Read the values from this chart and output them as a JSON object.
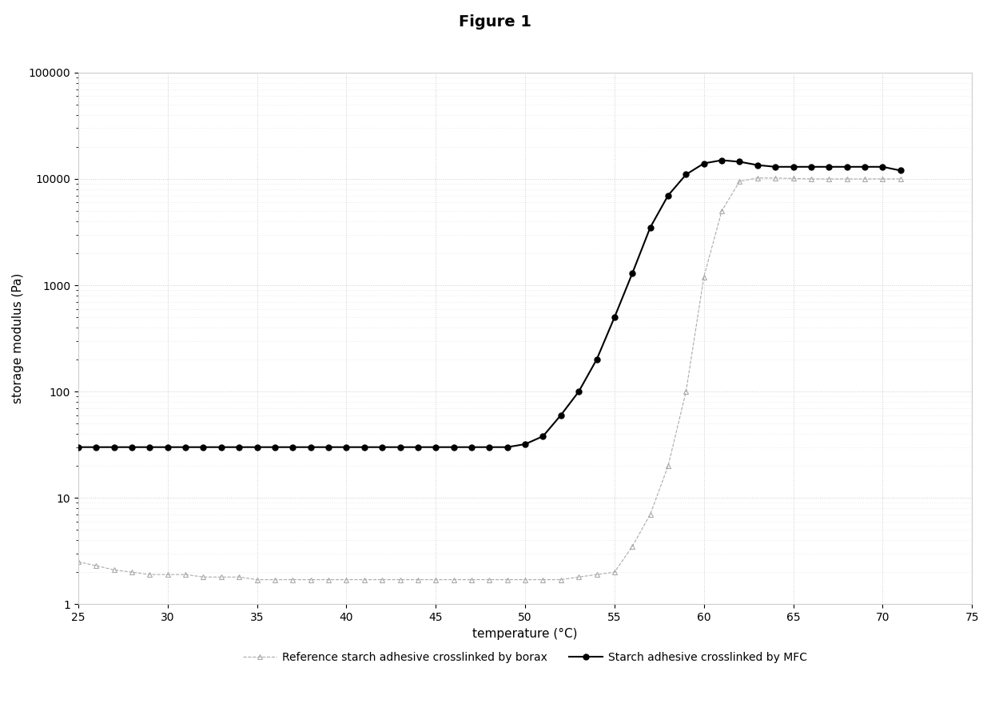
{
  "title": "Figure 1",
  "xlabel": "temperature (°C)",
  "ylabel": "storage modulus (Pa)",
  "xlim": [
    25,
    75
  ],
  "ylim": [
    1,
    100000
  ],
  "xticks": [
    25,
    30,
    35,
    40,
    45,
    50,
    55,
    60,
    65,
    70,
    75
  ],
  "mfc_x": [
    25,
    26,
    27,
    28,
    29,
    30,
    31,
    32,
    33,
    34,
    35,
    36,
    37,
    38,
    39,
    40,
    41,
    42,
    43,
    44,
    45,
    46,
    47,
    48,
    49,
    50,
    51,
    52,
    53,
    54,
    55,
    56,
    57,
    58,
    59,
    60,
    61,
    62,
    63,
    64,
    65,
    66,
    67,
    68,
    69,
    70,
    71
  ],
  "mfc_y": [
    30,
    30,
    30,
    30,
    30,
    30,
    30,
    30,
    30,
    30,
    30,
    30,
    30,
    30,
    30,
    30,
    30,
    30,
    30,
    30,
    30,
    30,
    30,
    30,
    30,
    32,
    38,
    60,
    100,
    200,
    500,
    1300,
    3500,
    7000,
    11000,
    14000,
    15000,
    14500,
    13500,
    13000,
    13000,
    13000,
    13000,
    13000,
    13000,
    13000,
    12000
  ],
  "borax_x": [
    25,
    26,
    27,
    28,
    29,
    30,
    31,
    32,
    33,
    34,
    35,
    36,
    37,
    38,
    39,
    40,
    41,
    42,
    43,
    44,
    45,
    46,
    47,
    48,
    49,
    50,
    51,
    52,
    53,
    54,
    55,
    56,
    57,
    58,
    59,
    60,
    61,
    62,
    63,
    64,
    65,
    66,
    67,
    68,
    69,
    70,
    71
  ],
  "borax_y": [
    2.5,
    2.3,
    2.1,
    2.0,
    1.9,
    1.9,
    1.9,
    1.8,
    1.8,
    1.8,
    1.7,
    1.7,
    1.7,
    1.7,
    1.7,
    1.7,
    1.7,
    1.7,
    1.7,
    1.7,
    1.7,
    1.7,
    1.7,
    1.7,
    1.7,
    1.7,
    1.7,
    1.7,
    1.8,
    1.9,
    2.0,
    3.5,
    7.0,
    20,
    100,
    1200,
    5000,
    9500,
    10200,
    10200,
    10100,
    10000,
    10000,
    10000,
    10000,
    10000,
    10000
  ],
  "mfc_color": "#000000",
  "borax_color": "#aaaaaa",
  "mfc_label": "Starch adhesive crosslinked by MFC",
  "borax_label": "Reference starch adhesive crosslinked by borax",
  "background_color": "#ffffff",
  "grid_color": "#cccccc",
  "title_fontsize": 14,
  "axis_label_fontsize": 11,
  "tick_fontsize": 10,
  "legend_fontsize": 10
}
